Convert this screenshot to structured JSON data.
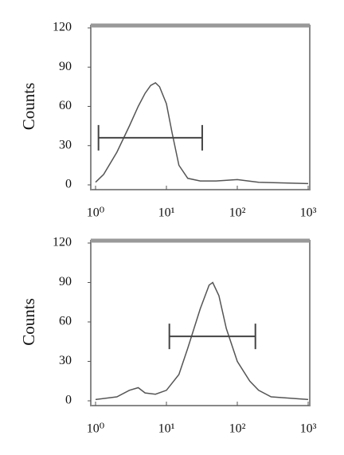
{
  "chart_data": [
    {
      "type": "line",
      "y_label": "Counts",
      "log_x": true,
      "color": "#555",
      "x": [
        1,
        1.3,
        2,
        3,
        4,
        5,
        6,
        7,
        8,
        10,
        12,
        15,
        20,
        30,
        50,
        100,
        200,
        1000
      ],
      "values": [
        2,
        8,
        25,
        45,
        60,
        70,
        76,
        78,
        75,
        62,
        40,
        15,
        5,
        3,
        3,
        4,
        2,
        1
      ],
      "gate": {
        "start": 1.1,
        "end": 32,
        "level": 36
      },
      "xlim": [
        1,
        1000
      ],
      "ylim": [
        0,
        120
      ],
      "xticks": [
        {
          "value": 1,
          "label": "10⁰"
        },
        {
          "value": 10,
          "label": "10¹"
        },
        {
          "value": 100,
          "label": "10²"
        },
        {
          "value": 1000,
          "label": "10³"
        }
      ],
      "yticks": [
        0,
        30,
        60,
        90,
        120
      ]
    },
    {
      "type": "line",
      "y_label": "Counts",
      "log_x": true,
      "color": "#555",
      "x": [
        1,
        2,
        3,
        4,
        5,
        7,
        10,
        15,
        20,
        30,
        40,
        45,
        55,
        70,
        100,
        150,
        200,
        300,
        1000
      ],
      "values": [
        1,
        3,
        8,
        10,
        6,
        5,
        8,
        20,
        40,
        70,
        88,
        90,
        80,
        55,
        30,
        15,
        8,
        3,
        1
      ],
      "gate": {
        "start": 11,
        "end": 180,
        "level": 49
      },
      "xlim": [
        1,
        1000
      ],
      "ylim": [
        0,
        120
      ],
      "xticks": [
        {
          "value": 1,
          "label": "10⁰"
        },
        {
          "value": 10,
          "label": "10¹"
        },
        {
          "value": 100,
          "label": "10²"
        },
        {
          "value": 1000,
          "label": "10³"
        }
      ],
      "yticks": [
        0,
        30,
        60,
        90,
        120
      ]
    }
  ]
}
